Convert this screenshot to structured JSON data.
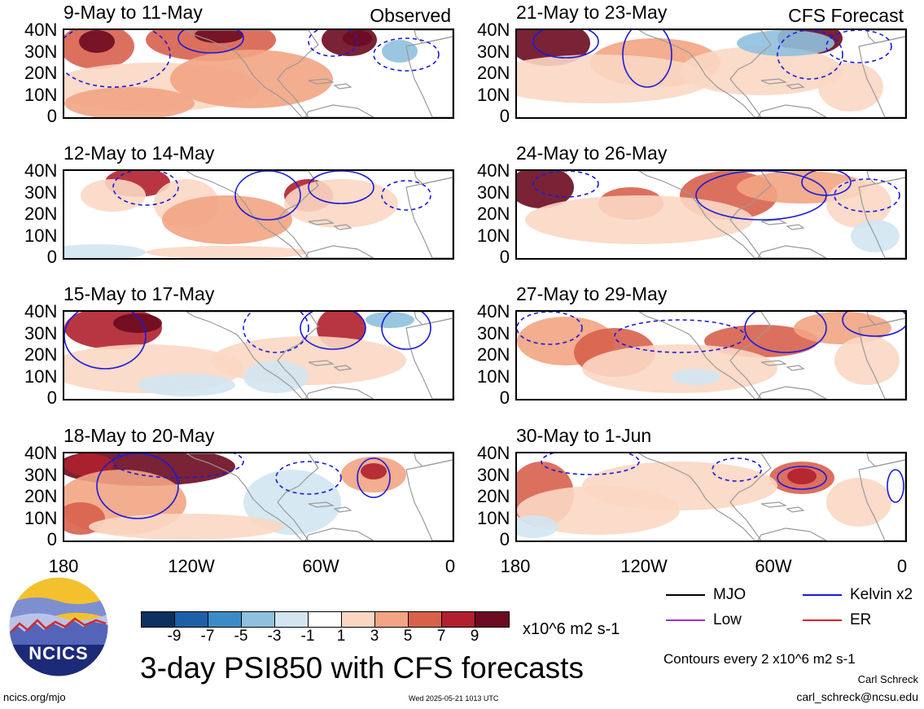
{
  "colors": {
    "land": "#9a9a9a",
    "kelvin": "#1a1adc",
    "mjo": "#000000",
    "low": "#9a30d8",
    "er": "#e02020",
    "scale": [
      "#0b3060",
      "#1f5fa8",
      "#3d8bc6",
      "#8fc0de",
      "#d2e5f1",
      "#ffffff",
      "#fbd7c3",
      "#f2a483",
      "#d8614c",
      "#b0202e",
      "#6b0a20"
    ]
  },
  "header": {
    "observed": "Observed",
    "forecast": "CFS Forecast"
  },
  "axes": {
    "lat_ticks": [
      "40N",
      "30N",
      "20N",
      "10N",
      "0"
    ],
    "lon_ticks": [
      "180",
      "120W",
      "60W",
      "0"
    ]
  },
  "panels": [
    {
      "title": "9-May to 11-May",
      "kind": "observed"
    },
    {
      "title": "12-May to 14-May",
      "kind": "observed"
    },
    {
      "title": "15-May to 17-May",
      "kind": "observed"
    },
    {
      "title": "18-May to 20-May",
      "kind": "observed"
    },
    {
      "title": "21-May to 23-May",
      "kind": "forecast"
    },
    {
      "title": "24-May to 26-May",
      "kind": "forecast"
    },
    {
      "title": "27-May to 29-May",
      "kind": "forecast"
    },
    {
      "title": "30-May to 1-Jun",
      "kind": "forecast"
    }
  ],
  "legend": {
    "mjo": "MJO",
    "kelvin": "Kelvin x2",
    "low": "Low",
    "er": "ER"
  },
  "colorbar": {
    "labels": [
      "-9",
      "-7",
      "-5",
      "-3",
      "-1",
      "1",
      "3",
      "5",
      "7",
      "9"
    ],
    "units": "x10^6 m2 s-1"
  },
  "footer": {
    "logo_text": "NCICS",
    "title": "3-day PSI850 with CFS forecasts",
    "contours": "Contours every 2 x10^6 m2 s-1",
    "author": "Carl Schreck",
    "email": "carl_schreck@ncsu.edu",
    "site": "ncics.org/mjo",
    "timestamp": "Wed 2025-05-21 1013 UTC"
  }
}
